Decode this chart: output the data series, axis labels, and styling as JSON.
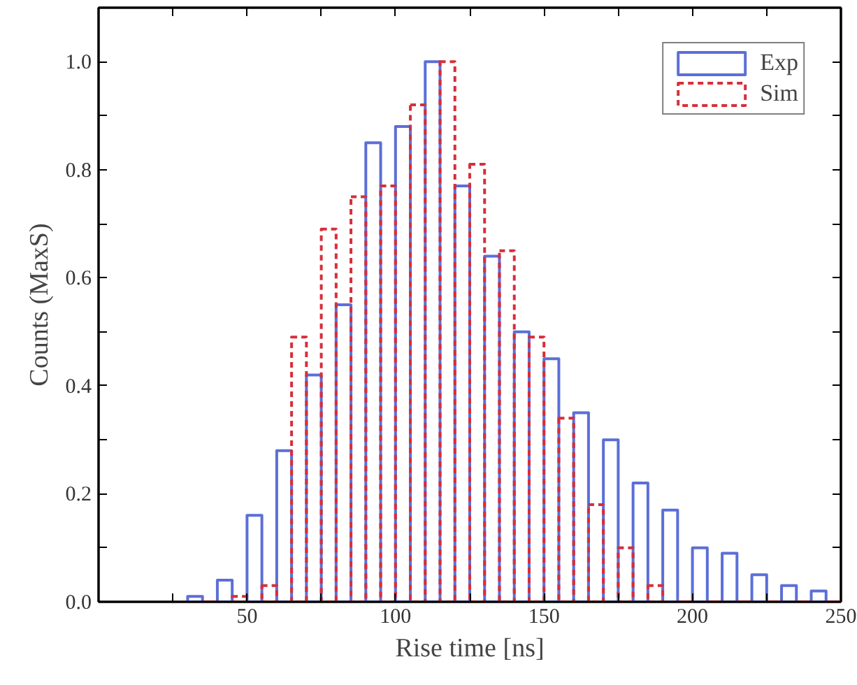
{
  "chart_data": {
    "type": "histogram",
    "xlabel": "Rise time [ns]",
    "ylabel": "Counts (MaxS)",
    "bins": [
      30,
      40,
      50,
      60,
      70,
      80,
      90,
      100,
      110,
      120,
      130,
      140,
      150,
      160,
      170,
      180,
      190,
      200,
      210,
      220,
      230,
      240,
      250
    ],
    "series": [
      {
        "name": "Exp",
        "color": "#5b6fd8",
        "line_style": "solid",
        "values": [
          0.01,
          0.04,
          0.16,
          0.28,
          0.42,
          0.55,
          0.85,
          0.88,
          1.0,
          0.77,
          0.64,
          0.5,
          0.45,
          0.35,
          0.3,
          0.22,
          0.17,
          0.1,
          0.09,
          0.05,
          0.03,
          0.02
        ]
      },
      {
        "name": "Sim",
        "color": "#d62f3a",
        "line_style": "dashed",
        "values": [
          0,
          0.01,
          0.03,
          0.49,
          0.69,
          0.75,
          0.77,
          0.92,
          1.0,
          0.81,
          0.65,
          0.49,
          0.34,
          0.18,
          0.1,
          0.03,
          0,
          0,
          0,
          0,
          0,
          0
        ]
      }
    ],
    "xlim": [
      0,
      250
    ],
    "xticks": [
      {
        "value": 25,
        "label": null
      },
      50,
      {
        "value": 75,
        "label": null
      },
      100,
      {
        "value": 125,
        "label": null
      },
      150,
      {
        "value": 175,
        "label": null
      },
      200,
      {
        "value": 225,
        "label": null
      },
      250
    ],
    "ylim": [
      0,
      1.1
    ],
    "yticks": [
      {
        "value": 0,
        "label": "0.0"
      },
      {
        "value": 0.1,
        "label": null
      },
      {
        "value": 0.2,
        "label": "0.2"
      },
      {
        "value": 0.3,
        "label": null
      },
      {
        "value": 0.4,
        "label": "0.4"
      },
      {
        "value": 0.5,
        "label": null
      },
      {
        "value": 0.6,
        "label": "0.6"
      },
      {
        "value": 0.7,
        "label": null
      },
      {
        "value": 0.8,
        "label": "0.8"
      },
      {
        "value": 0.9,
        "label": null
      },
      {
        "value": 1.0,
        "label": "1.0"
      }
    ],
    "grid": false,
    "legend": "top right"
  }
}
